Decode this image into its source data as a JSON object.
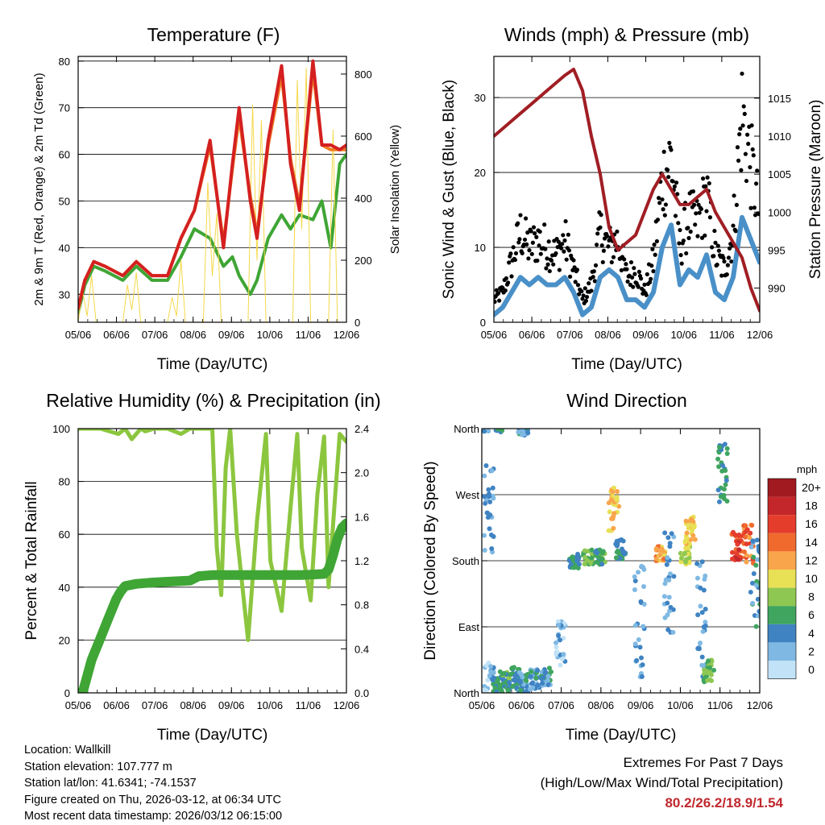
{
  "chart_data": [
    {
      "type": "line",
      "title": "Temperature (F)",
      "xlabel": "Time (Day/UTC)",
      "ylabel": "2m & 9m T (Red, Orange) & 2m Td (Green)",
      "y2label": "Solar Insolation (Yellow)",
      "x_ticks": [
        "05/06",
        "06/06",
        "07/06",
        "08/06",
        "09/06",
        "10/06",
        "11/06",
        "12/06"
      ],
      "xlim": [
        0,
        6
      ],
      "ylim": [
        24,
        81
      ],
      "y_ticks": [
        30,
        40,
        50,
        60,
        70,
        80
      ],
      "y2lim": [
        0,
        857
      ],
      "y2_ticks": [
        0,
        200,
        400,
        600,
        800
      ],
      "grid": true,
      "series": [
        {
          "name": "2m T",
          "color": "#d42020",
          "x": [
            0,
            0.15,
            0.35,
            0.6,
            1.0,
            1.3,
            1.65,
            2.0,
            2.3,
            2.6,
            2.95,
            3.25,
            3.45,
            3.6,
            3.85,
            4.0,
            4.25,
            4.55,
            4.75,
            4.95,
            5.25,
            5.45,
            5.65,
            5.85,
            6.0
          ],
          "values": [
            27,
            33,
            37,
            36,
            34,
            37,
            34,
            34,
            42,
            48,
            63,
            40,
            58,
            70,
            50,
            42,
            63,
            79,
            58,
            48,
            80,
            62,
            62,
            61,
            62
          ]
        },
        {
          "name": "9m T",
          "color": "#f07c22",
          "x": [
            0,
            0.15,
            0.35,
            0.6,
            1.0,
            1.3,
            1.65,
            2.0,
            2.3,
            2.6,
            2.95,
            3.25,
            3.45,
            3.6,
            3.85,
            4.0,
            4.25,
            4.55,
            4.75,
            4.95,
            5.25,
            5.45,
            5.65,
            5.85,
            6.0
          ],
          "values": [
            27,
            33,
            37,
            36,
            34,
            37,
            34,
            34,
            42,
            48,
            62,
            41,
            57,
            68,
            51,
            43,
            62,
            77,
            59,
            49,
            78,
            62,
            61,
            61,
            61
          ]
        },
        {
          "name": "2m Td",
          "color": "#3fa535",
          "x": [
            0,
            0.15,
            0.35,
            0.6,
            1.0,
            1.3,
            1.65,
            2.0,
            2.3,
            2.6,
            2.95,
            3.25,
            3.45,
            3.6,
            3.85,
            4.0,
            4.25,
            4.55,
            4.75,
            4.95,
            5.25,
            5.45,
            5.65,
            5.85,
            6.0
          ],
          "values": [
            26,
            32,
            36,
            35,
            33,
            36,
            33,
            33,
            38,
            44,
            42,
            36,
            38,
            34,
            30,
            33,
            42,
            47,
            44,
            47,
            46,
            50,
            40,
            58,
            60
          ]
        },
        {
          "name": "Solar Insolation",
          "color": "#f5d84a",
          "axis": "y2",
          "x": [
            0,
            0.1,
            0.2,
            0.3,
            0.4,
            1.0,
            1.1,
            1.2,
            1.3,
            1.4,
            2.0,
            2.1,
            2.2,
            2.3,
            2.4,
            2.8,
            2.9,
            3.0,
            3.1,
            3.2,
            3.8,
            3.9,
            4.0,
            4.1,
            4.2,
            4.8,
            4.9,
            5.0,
            5.1,
            5.2,
            5.6,
            5.7,
            5.8,
            5.9,
            6.0
          ],
          "values": [
            0,
            100,
            20,
            150,
            0,
            0,
            120,
            40,
            160,
            0,
            0,
            80,
            20,
            200,
            0,
            0,
            450,
            150,
            350,
            0,
            0,
            700,
            200,
            650,
            0,
            0,
            780,
            300,
            820,
            0,
            0,
            620,
            0,
            0,
            0
          ]
        }
      ]
    },
    {
      "type": "line",
      "title": "Winds (mph) & Pressure (mb)",
      "xlabel": "Time (Day/UTC)",
      "ylabel": "Sonic Wind & Gust (Blue, Black)",
      "y2label": "Station Pressure (Maroon)",
      "x_ticks": [
        "05/06",
        "06/06",
        "07/06",
        "08/06",
        "09/06",
        "10/06",
        "11/06",
        "12/06"
      ],
      "xlim": [
        0,
        6
      ],
      "ylim": [
        0,
        35.5
      ],
      "y_ticks": [
        0,
        10,
        20,
        30
      ],
      "y2lim": [
        985.5,
        1020.5
      ],
      "y2_ticks": [
        990,
        995,
        1000,
        1005,
        1010,
        1015
      ],
      "grid": true,
      "series": [
        {
          "name": "Pressure",
          "color": "#a01e24",
          "axis": "y2",
          "x": [
            0,
            0.2,
            0.4,
            0.6,
            0.8,
            1.0,
            1.2,
            1.4,
            1.6,
            1.8,
            2.0,
            2.2,
            2.4,
            2.6,
            2.8,
            3.0,
            3.2,
            3.4,
            3.6,
            3.8,
            4.0,
            4.2,
            4.4,
            4.6,
            4.8,
            5.0,
            5.2,
            5.4,
            5.6,
            5.8,
            6.0
          ],
          "values": [
            1010,
            1011,
            1012,
            1013,
            1014,
            1015,
            1016,
            1017,
            1018,
            1018.8,
            1016,
            1010,
            1005,
            998,
            995,
            996,
            997,
            1000,
            1003,
            1005,
            1003,
            1001,
            1001,
            1002,
            1003,
            1000,
            998,
            996,
            994,
            990,
            987
          ]
        },
        {
          "name": "Gust",
          "color": "#000000",
          "x": [
            0,
            0.2,
            0.4,
            0.6,
            0.8,
            1.0,
            1.2,
            1.4,
            1.6,
            1.8,
            2.0,
            2.2,
            2.4,
            2.6,
            2.8,
            3.0,
            3.2,
            3.4,
            3.6,
            3.8,
            4.0,
            4.2,
            4.4,
            4.6,
            4.8,
            5.0,
            5.2,
            5.4,
            5.6,
            5.8,
            6.0
          ],
          "values": [
            3,
            4,
            8,
            12,
            10,
            11,
            10,
            9,
            11,
            7,
            3,
            5,
            12,
            10,
            11,
            6,
            7,
            4,
            8,
            19,
            22,
            10,
            14,
            13,
            17,
            9,
            7,
            12,
            28,
            21,
            14
          ]
        },
        {
          "name": "Wind",
          "color": "#4a90c8",
          "x": [
            0,
            0.2,
            0.4,
            0.6,
            0.8,
            1.0,
            1.2,
            1.4,
            1.6,
            1.8,
            2.0,
            2.2,
            2.4,
            2.6,
            2.8,
            3.0,
            3.2,
            3.4,
            3.6,
            3.8,
            4.0,
            4.2,
            4.4,
            4.6,
            4.8,
            5.0,
            5.2,
            5.4,
            5.6,
            5.8,
            6.0
          ],
          "values": [
            1,
            2,
            4,
            6,
            5,
            6,
            5,
            5,
            6,
            4,
            1,
            2,
            6,
            7,
            6,
            3,
            3,
            2,
            4,
            10,
            13,
            5,
            7,
            6,
            9,
            4,
            3,
            6,
            14,
            11,
            8
          ]
        }
      ]
    },
    {
      "type": "line",
      "title": "Relative Humidity (%) & Precipitation (in)",
      "xlabel": "Time (Day/UTC)",
      "ylabel": "Percent & Total Rainfall",
      "x_ticks": [
        "05/06",
        "06/06",
        "07/06",
        "08/06",
        "09/06",
        "10/06",
        "11/06",
        "12/06"
      ],
      "xlim": [
        0,
        6
      ],
      "ylim": [
        0,
        100
      ],
      "y_ticks": [
        0,
        20,
        40,
        60,
        80,
        100
      ],
      "y2lim": [
        0,
        2.4
      ],
      "y2_ticks": [
        "0.0",
        "0.4",
        "0.8",
        "1.2",
        "1.6",
        "2.0",
        "2.4"
      ],
      "grid": true,
      "series": [
        {
          "name": "Relative Humidity",
          "color": "#8cc63f",
          "x": [
            0,
            0.5,
            0.9,
            1.05,
            1.2,
            1.4,
            1.5,
            1.7,
            2.0,
            2.3,
            2.5,
            2.8,
            3.0,
            3.1,
            3.2,
            3.3,
            3.4,
            3.55,
            3.8,
            4.0,
            4.2,
            4.3,
            4.55,
            4.75,
            4.9,
            5.0,
            5.2,
            5.35,
            5.5,
            5.6,
            5.75,
            5.85,
            6.0
          ],
          "values": [
            100,
            100,
            98,
            100,
            96,
            100,
            99,
            100,
            100,
            98,
            100,
            100,
            100,
            55,
            37,
            85,
            100,
            60,
            20,
            65,
            98,
            50,
            31,
            70,
            98,
            55,
            35,
            75,
            97,
            40,
            75,
            98,
            95
          ]
        },
        {
          "name": "Total Precipitation",
          "color": "#3fa535",
          "axis": "y2",
          "x": [
            0,
            0.1,
            0.3,
            0.5,
            0.7,
            0.85,
            0.95,
            1.05,
            1.3,
            1.6,
            2.0,
            2.5,
            2.7,
            3.0,
            3.5,
            4.0,
            4.5,
            5.0,
            5.5,
            5.6,
            5.7,
            5.8,
            5.9,
            6.0
          ],
          "values": [
            0,
            0,
            0.3,
            0.5,
            0.7,
            0.85,
            0.92,
            0.97,
            0.99,
            1.0,
            1.01,
            1.02,
            1.06,
            1.07,
            1.07,
            1.07,
            1.07,
            1.07,
            1.08,
            1.12,
            1.25,
            1.4,
            1.5,
            1.54
          ]
        }
      ]
    },
    {
      "type": "scatter",
      "title": "Wind Direction",
      "xlabel": "Time (Day/UTC)",
      "ylabel": "Direction (Colored By Speed)",
      "x_ticks": [
        "05/06",
        "06/06",
        "07/06",
        "08/06",
        "09/06",
        "10/06",
        "11/06",
        "12/06"
      ],
      "xlim": [
        0,
        6
      ],
      "ylim": [
        0,
        360
      ],
      "y_ticks": [
        "North",
        "East",
        "South",
        "West",
        "North"
      ],
      "colorbar_title": "mph",
      "colorbar_labels": [
        "20+",
        "18",
        "16",
        "14",
        "12",
        "10",
        "8",
        "6",
        "4",
        "2",
        "0"
      ],
      "colorbar_colors": [
        "#a01a1f",
        "#c4272b",
        "#e53d2c",
        "#f06a2e",
        "#f9a54b",
        "#e8e055",
        "#8ec751",
        "#3fa55f",
        "#3f83c3",
        "#7fb9e3",
        "#c2e2f7"
      ],
      "clusters": [
        {
          "x": 0.15,
          "dir": 20,
          "spread": 25,
          "speed": 2
        },
        {
          "x": 0.35,
          "dir": 10,
          "spread": 15,
          "speed": 5
        },
        {
          "x": 0.5,
          "dir": 15,
          "spread": 15,
          "speed": 6
        },
        {
          "x": 0.7,
          "dir": 20,
          "spread": 15,
          "speed": 5
        },
        {
          "x": 0.9,
          "dir": 15,
          "spread": 15,
          "speed": 4
        },
        {
          "x": 1.15,
          "dir": 20,
          "spread": 15,
          "speed": 4
        },
        {
          "x": 1.4,
          "dir": 20,
          "spread": 15,
          "speed": 4
        },
        {
          "x": 0.15,
          "dir": 250,
          "spread": 60,
          "speed": 3
        },
        {
          "x": 0.9,
          "dir": 355,
          "spread": 4,
          "speed": 4
        },
        {
          "x": 1.7,
          "dir": 60,
          "spread": 40,
          "speed": 2
        },
        {
          "x": 2.0,
          "dir": 180,
          "spread": 10,
          "speed": 5
        },
        {
          "x": 2.3,
          "dir": 185,
          "spread": 10,
          "speed": 7
        },
        {
          "x": 2.55,
          "dir": 185,
          "spread": 10,
          "speed": 6
        },
        {
          "x": 2.85,
          "dir": 250,
          "spread": 30,
          "speed": 11
        },
        {
          "x": 3.0,
          "dir": 195,
          "spread": 15,
          "speed": 5
        },
        {
          "x": 3.4,
          "dir": 100,
          "spread": 80,
          "speed": 3
        },
        {
          "x": 3.85,
          "dir": 190,
          "spread": 10,
          "speed": 12
        },
        {
          "x": 4.05,
          "dir": 150,
          "spread": 70,
          "speed": 3
        },
        {
          "x": 4.4,
          "dir": 190,
          "spread": 15,
          "speed": 9
        },
        {
          "x": 4.5,
          "dir": 220,
          "spread": 20,
          "speed": 11
        },
        {
          "x": 4.75,
          "dir": 100,
          "spread": 80,
          "speed": 3
        },
        {
          "x": 4.9,
          "dir": 30,
          "spread": 15,
          "speed": 7
        },
        {
          "x": 5.2,
          "dir": 300,
          "spread": 40,
          "speed": 5
        },
        {
          "x": 5.5,
          "dir": 200,
          "spread": 20,
          "speed": 16
        },
        {
          "x": 5.75,
          "dir": 200,
          "spread": 30,
          "speed": 14
        },
        {
          "x": 5.9,
          "dir": 150,
          "spread": 60,
          "speed": 4
        }
      ]
    }
  ],
  "info": {
    "location": "Location: Wallkill",
    "elevation": "Station elevation: 107.777 m",
    "latlon": "Station lat/lon: 41.6341; -74.1537",
    "created": "Figure created on Thu, 2026-03-12, at 06:34 UTC",
    "timestamp": "Most recent data timestamp: 2026/03/12 06:15:00"
  },
  "extremes": {
    "line1": "Extremes For Past 7 Days",
    "line2": "(High/Low/Max Wind/Total Precipitation)",
    "values": "80.2/26.2/18.9/1.54"
  }
}
